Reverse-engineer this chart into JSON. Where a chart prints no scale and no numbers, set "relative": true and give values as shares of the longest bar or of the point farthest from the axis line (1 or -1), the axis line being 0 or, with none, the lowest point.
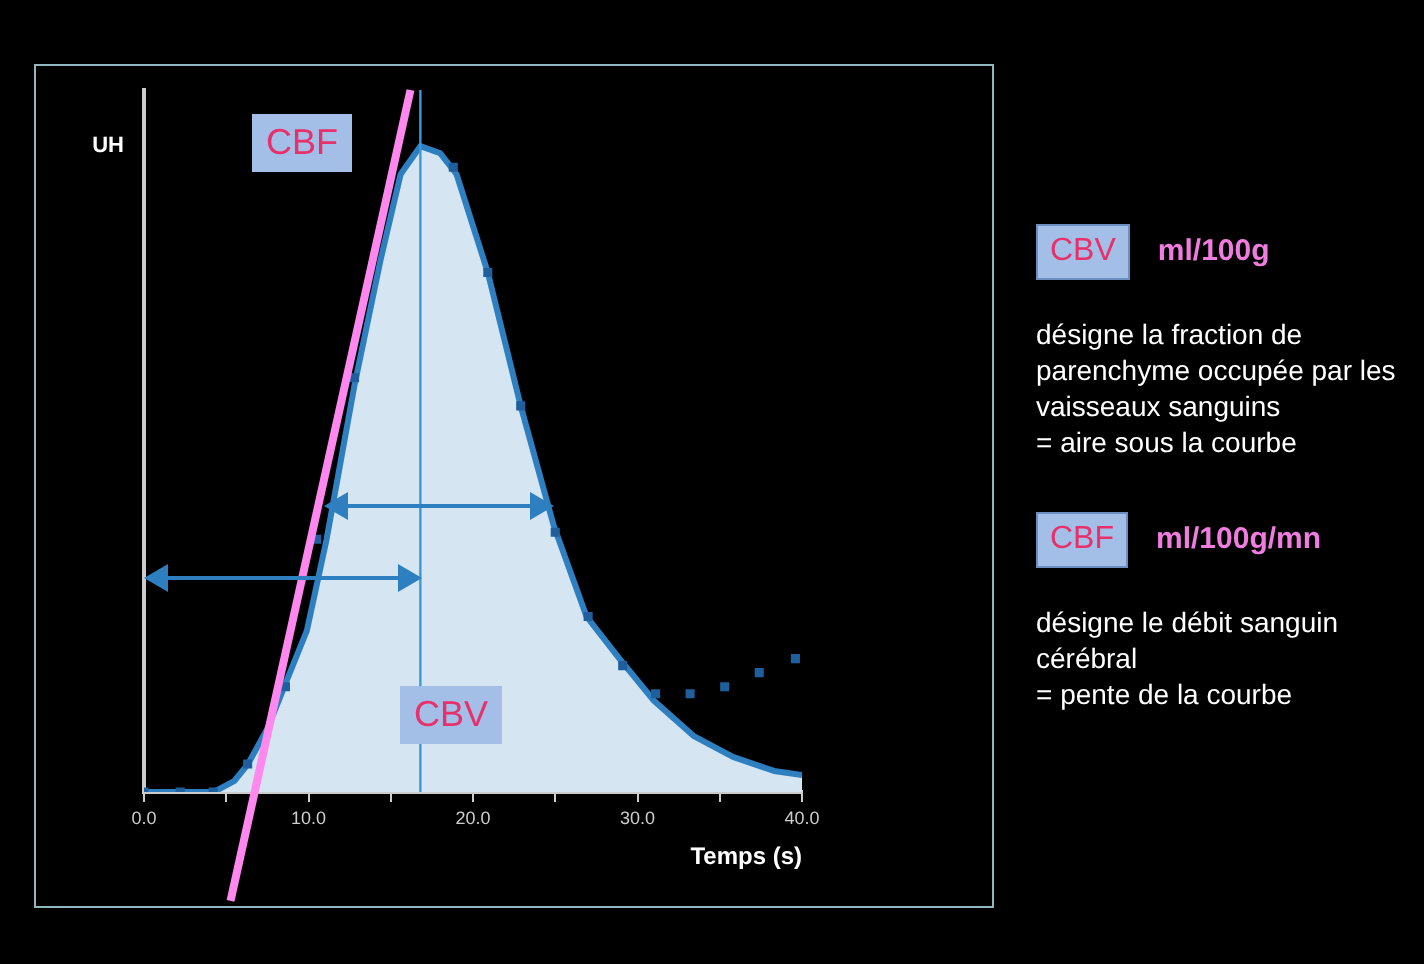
{
  "chart_data": {
    "type": "area",
    "relative": true,
    "ylabel": "UH",
    "xlabel": "Temps (s)",
    "xlim": [
      0,
      40
    ],
    "xticks": [
      {
        "value": 0,
        "label": "0.0"
      },
      {
        "value": 5,
        "label": null
      },
      {
        "value": 10,
        "label": "10.0"
      },
      {
        "value": 15,
        "label": null
      },
      {
        "value": 20,
        "label": "20.0"
      },
      {
        "value": 25,
        "label": null
      },
      {
        "value": 30,
        "label": "30.0"
      },
      {
        "value": 35,
        "label": null
      },
      {
        "value": 40,
        "label": "40.0"
      }
    ],
    "tick_labels": "x",
    "grid": false,
    "legend": false,
    "series": [
      {
        "type": "area",
        "color": "#2e7fbf",
        "x": [
          0,
          2.2,
          4.25,
          5.5,
          6.3,
          7.5,
          8.7,
          9.9,
          11.1,
          12.8,
          14.4,
          15.6,
          16.8,
          18.0,
          19.0,
          20.9,
          22.9,
          24.9,
          26.9,
          28.9,
          31.0,
          33.4,
          35.8,
          38.3,
          40
        ],
        "values": [
          0,
          0,
          0,
          0.016,
          0.039,
          0.09,
          0.16,
          0.23,
          0.36,
          0.58,
          0.76,
          0.88,
          0.92,
          0.91,
          0.88,
          0.74,
          0.55,
          0.38,
          0.25,
          0.19,
          0.13,
          0.08,
          0.05,
          0.03,
          0.024
        ]
      },
      {
        "type": "scatter",
        "color": "#1f5f9e",
        "marker": "square",
        "x": [
          0,
          2.2,
          4.2,
          6.3,
          8.6,
          10.5,
          12.8,
          18.8,
          20.9,
          22.9,
          25,
          27,
          29.1,
          31.1,
          33.2,
          35.3,
          37.4,
          39.6
        ],
        "values": [
          0,
          0,
          0,
          0.04,
          0.15,
          0.36,
          0.59,
          0.89,
          0.74,
          0.55,
          0.37,
          0.25,
          0.18,
          0.14,
          0.14,
          0.15,
          0.17,
          0.19
        ]
      },
      {
        "type": "line",
        "color": "#ff88ee",
        "x": [
          5.26,
          16.2
        ],
        "values": [
          -0.155,
          1
        ]
      }
    ],
    "ref_lines": [
      {
        "axis": "x",
        "value": 16.8,
        "color": "#3a9ad9"
      }
    ],
    "annotations": [
      "CBF",
      "CBV",
      "CBV",
      "ml/100g",
      "désigne la fraction de parenchyme occupée par les vaisseaux sanguins",
      "= aire sous la courbe",
      "CBF",
      "ml/100g/mn",
      "désigne le débit sanguin cérébral",
      "= pente de la courbe"
    ]
  }
}
